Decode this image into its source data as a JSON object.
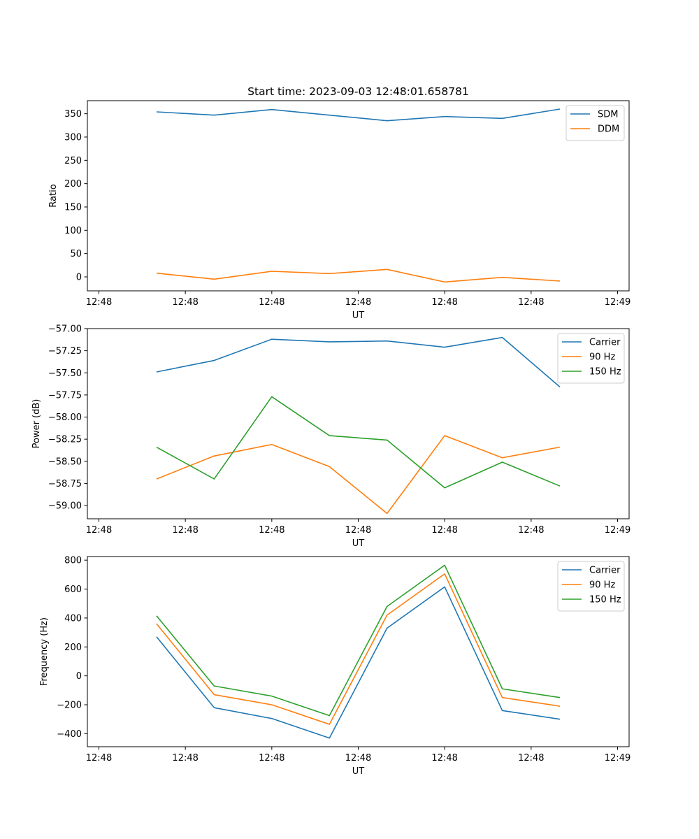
{
  "figure_title": "Start time: 2023-09-03 12:48:01.658781",
  "colors": {
    "blue": "#1f77b4",
    "orange": "#ff7f0e",
    "green": "#2ca02c"
  },
  "chart_data": [
    {
      "type": "line",
      "title": "Start time: 2023-09-03 12:48:01.658781",
      "xlabel": "UT",
      "ylabel": "Ratio",
      "xlim": [
        -0.2,
        9.2
      ],
      "ylim": [
        -30,
        378
      ],
      "x": [
        1,
        2,
        3,
        4,
        5,
        6,
        7,
        8
      ],
      "xticks": [
        0,
        1.5,
        3,
        4.5,
        6,
        7.5,
        9
      ],
      "xtick_labels": [
        "12:48",
        "12:48",
        "12:48",
        "12:48",
        "12:48",
        "12:48",
        "12:49"
      ],
      "yticks": [
        0,
        50,
        100,
        150,
        200,
        250,
        300,
        350
      ],
      "ytick_labels": [
        "0",
        "50",
        "100",
        "150",
        "200",
        "250",
        "300",
        "350"
      ],
      "legend_position": "top-right",
      "series": [
        {
          "name": "SDM",
          "color": "#1f77b4",
          "values": [
            354,
            347,
            359,
            347,
            335,
            344,
            340,
            360
          ]
        },
        {
          "name": "DDM",
          "color": "#ff7f0e",
          "values": [
            8,
            -5,
            12,
            7,
            16,
            -11,
            -1,
            -9
          ]
        }
      ]
    },
    {
      "type": "line",
      "title": "",
      "xlabel": "UT",
      "ylabel": "Power (dB)",
      "xlim": [
        -0.2,
        9.2
      ],
      "ylim": [
        -59.15,
        -57.0
      ],
      "x": [
        1,
        2,
        3,
        4,
        5,
        6,
        7,
        8
      ],
      "xticks": [
        0,
        1.5,
        3,
        4.5,
        6,
        7.5,
        9
      ],
      "xtick_labels": [
        "12:48",
        "12:48",
        "12:48",
        "12:48",
        "12:48",
        "12:48",
        "12:49"
      ],
      "yticks": [
        -59.0,
        -58.75,
        -58.5,
        -58.25,
        -58.0,
        -57.75,
        -57.5,
        -57.25,
        -57.0
      ],
      "ytick_labels": [
        "−59.00",
        "−58.75",
        "−58.50",
        "−58.25",
        "−58.00",
        "−57.75",
        "−57.50",
        "−57.25",
        "−57.00"
      ],
      "legend_position": "top-right",
      "series": [
        {
          "name": "Carrier",
          "color": "#1f77b4",
          "values": [
            -57.49,
            -57.36,
            -57.12,
            -57.15,
            -57.14,
            -57.21,
            -57.1,
            -57.66
          ]
        },
        {
          "name": "90 Hz",
          "color": "#ff7f0e",
          "values": [
            -58.7,
            -58.44,
            -58.31,
            -58.56,
            -59.09,
            -58.21,
            -58.46,
            -58.34
          ]
        },
        {
          "name": "150 Hz",
          "color": "#2ca02c",
          "values": [
            -58.34,
            -58.7,
            -57.77,
            -58.21,
            -58.26,
            -58.8,
            -58.51,
            -58.78
          ]
        }
      ]
    },
    {
      "type": "line",
      "title": "",
      "xlabel": "UT",
      "ylabel": "Frequency (Hz)",
      "xlim": [
        -0.2,
        9.2
      ],
      "ylim": [
        -490,
        825
      ],
      "x": [
        1,
        2,
        3,
        4,
        5,
        6,
        7,
        8
      ],
      "xticks": [
        0,
        1.5,
        3,
        4.5,
        6,
        7.5,
        9
      ],
      "xtick_labels": [
        "12:48",
        "12:48",
        "12:48",
        "12:48",
        "12:48",
        "12:48",
        "12:49"
      ],
      "yticks": [
        -400,
        -200,
        0,
        200,
        400,
        600,
        800
      ],
      "ytick_labels": [
        "−400",
        "−200",
        "0",
        "200",
        "400",
        "600",
        "800"
      ],
      "legend_position": "top-right",
      "series": [
        {
          "name": "Carrier",
          "color": "#1f77b4",
          "values": [
            270,
            -220,
            -295,
            -430,
            330,
            615,
            -240,
            -300
          ]
        },
        {
          "name": "90 Hz",
          "color": "#ff7f0e",
          "values": [
            360,
            -130,
            -200,
            -335,
            420,
            705,
            -150,
            -210
          ]
        },
        {
          "name": "150 Hz",
          "color": "#2ca02c",
          "values": [
            415,
            -70,
            -140,
            -275,
            480,
            765,
            -90,
            -150
          ]
        }
      ]
    }
  ]
}
